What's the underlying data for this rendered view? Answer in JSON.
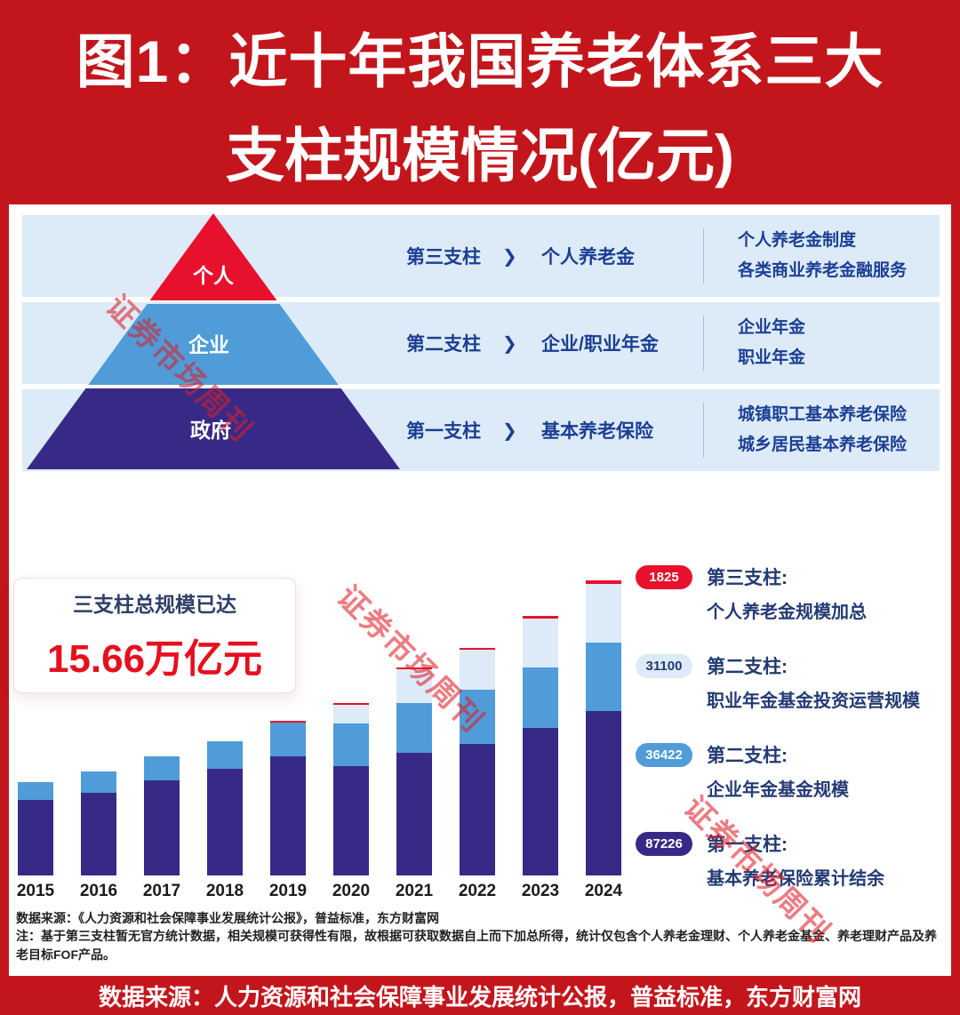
{
  "header": {
    "line1": "图1：近十年我国养老体系三大",
    "line2": "支柱规模情况(亿元)"
  },
  "watermark": {
    "text": "证券市场周刊",
    "color": "#e2212e"
  },
  "pyramid": {
    "layers": [
      {
        "label": "个人",
        "color": "#e8112d"
      },
      {
        "label": "企业",
        "color": "#4f9cd8"
      },
      {
        "label": "政府",
        "color": "#372a87"
      }
    ],
    "rows": [
      {
        "pillar": "第三支柱",
        "arrow": "❯",
        "name": "个人养老金",
        "detail1": "个人养老金制度",
        "detail2": "各类商业养老金融服务"
      },
      {
        "pillar": "第二支柱",
        "arrow": "❯",
        "name": "企业/职业年金",
        "detail1": "企业年金",
        "detail2": "职业年金"
      },
      {
        "pillar": "第一支柱",
        "arrow": "❯",
        "name": "基本养老保险",
        "detail1": "城镇职工基本养老保险",
        "detail2": "城乡居民基本养老保险"
      }
    ]
  },
  "summary_card": {
    "line1": "三支柱总规模已达",
    "value": "15.66万亿元",
    "value_color": "#e60f1e"
  },
  "legend": {
    "items": [
      {
        "value": "1825",
        "pill_color": "#e8112d",
        "text_color": "#ffffff",
        "title": "第三支柱:",
        "desc": "个人养老金规模加总"
      },
      {
        "value": "31100",
        "pill_color": "#dcebf7",
        "text_color": "#233a73",
        "title": "第二支柱:",
        "desc": "职业年金基金投资运营规模"
      },
      {
        "value": "36422",
        "pill_color": "#4f9cd8",
        "text_color": "#ffffff",
        "title": "第二支柱:",
        "desc": "企业年金基金规模"
      },
      {
        "value": "87226",
        "pill_color": "#372a87",
        "text_color": "#ffffff",
        "title": "第一支柱:",
        "desc": "基本养老保险累计结余"
      }
    ]
  },
  "chart_data": {
    "type": "bar",
    "stacked": true,
    "title": "近十年我国养老体系三大支柱规模情况(亿元)",
    "unit": "亿元",
    "categories": [
      "2015",
      "2016",
      "2017",
      "2018",
      "2019",
      "2020",
      "2021",
      "2022",
      "2023",
      "2024"
    ],
    "series": [
      {
        "name": "第一支柱：基本养老保险累计结余",
        "color": "#372a87",
        "values": [
          39937,
          43965,
          50202,
          56624,
          62873,
          58075,
          64826,
          69851,
          78037,
          87226
        ]
      },
      {
        "name": "第二支柱：企业年金基金规模",
        "color": "#4f9cd8",
        "values": [
          9526,
          11075,
          12880,
          14770,
          17985,
          22497,
          26406,
          28701,
          31874,
          36422
        ]
      },
      {
        "name": "第二支柱：职业年金基金投资运营规模",
        "color": "#dcebf7",
        "values": [
          0,
          0,
          0,
          0,
          0,
          10000,
          17900,
          21100,
          25800,
          31100
        ]
      },
      {
        "name": "第三支柱：个人养老金规模加总",
        "color": "#e8112d",
        "values": [
          0,
          0,
          0,
          0,
          300,
          500,
          700,
          1000,
          1400,
          1825
        ]
      }
    ],
    "ylim": [
      0,
      160000
    ],
    "grid": false,
    "legend_position": "right",
    "total_label": "三支柱总规模已达 15.66万亿元"
  },
  "footnotes": {
    "line1": "数据来源：《人力资源和社会保障事业发展统计公报》，普益标准，东方财富网",
    "line2": "注：基于第三支柱暂无官方统计数据，相关规模可获得性有限，故根据可获取数据自上而下加总所得，统计仅包含个人养老金理财、个人养老金基金、养老理财产品及养老目标FOF产品。"
  },
  "footer_banner": {
    "text": "数据来源：人力资源和社会保障事业发展统计公报，普益标准，东方财富网"
  },
  "colors": {
    "banner_red": "#c3161c",
    "pillar1_purple": "#372a87",
    "pillar2_blue": "#4f9cd8",
    "pillar2_lightblue": "#dcebf7",
    "pillar3_red": "#e8112d",
    "row_band_blue": "#dcebf7",
    "text_navy": "#1c3e94"
  }
}
